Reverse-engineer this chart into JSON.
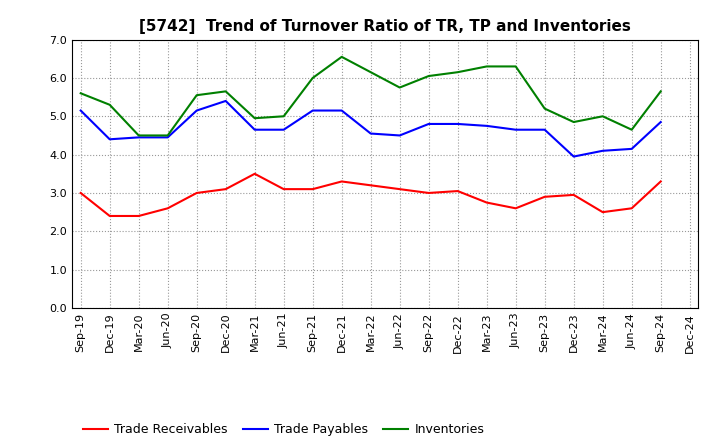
{
  "title": "[5742]  Trend of Turnover Ratio of TR, TP and Inventories",
  "x_labels": [
    "Sep-19",
    "Dec-19",
    "Mar-20",
    "Jun-20",
    "Sep-20",
    "Dec-20",
    "Mar-21",
    "Jun-21",
    "Sep-21",
    "Dec-21",
    "Mar-22",
    "Jun-22",
    "Sep-22",
    "Dec-22",
    "Mar-23",
    "Jun-23",
    "Sep-23",
    "Dec-23",
    "Mar-24",
    "Jun-24",
    "Sep-24",
    "Dec-24"
  ],
  "trade_receivables": [
    3.0,
    2.4,
    2.4,
    2.6,
    3.0,
    3.1,
    3.5,
    3.1,
    3.1,
    3.3,
    3.2,
    3.1,
    3.0,
    3.05,
    2.75,
    2.6,
    2.9,
    2.95,
    2.5,
    2.6,
    3.3,
    null
  ],
  "trade_payables": [
    5.15,
    4.4,
    4.45,
    4.45,
    5.15,
    5.4,
    4.65,
    4.65,
    5.15,
    5.15,
    4.55,
    4.5,
    4.8,
    4.8,
    4.75,
    4.65,
    4.65,
    3.95,
    4.1,
    4.15,
    4.85,
    null
  ],
  "inventories": [
    5.6,
    5.3,
    4.5,
    4.5,
    5.55,
    5.65,
    4.95,
    5.0,
    6.0,
    6.55,
    6.15,
    5.75,
    6.05,
    6.15,
    6.3,
    6.3,
    5.2,
    4.85,
    5.0,
    4.65,
    5.65,
    null
  ],
  "ylim": [
    0.0,
    7.0
  ],
  "yticks": [
    0.0,
    1.0,
    2.0,
    3.0,
    4.0,
    5.0,
    6.0,
    7.0
  ],
  "tr_color": "#FF0000",
  "tp_color": "#0000FF",
  "inv_color": "#008000",
  "legend_labels": [
    "Trade Receivables",
    "Trade Payables",
    "Inventories"
  ],
  "background_color": "#FFFFFF",
  "grid_color": "#999999",
  "title_fontsize": 11,
  "axis_fontsize": 8,
  "legend_fontsize": 9
}
